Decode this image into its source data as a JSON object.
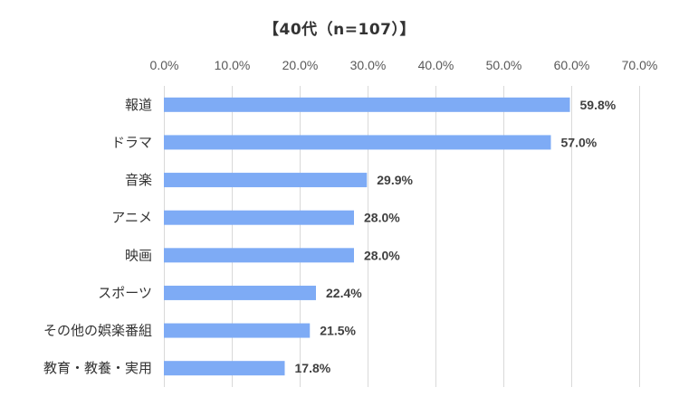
{
  "chart_data": {
    "type": "bar",
    "orientation": "horizontal",
    "title": "【40代（n=107）】",
    "categories": [
      "報道",
      "ドラマ",
      "音楽",
      "アニメ",
      "映画",
      "スポーツ",
      "その他の娯楽番組",
      "教育・教養・実用"
    ],
    "values": [
      59.8,
      57.0,
      29.9,
      28.0,
      28.0,
      22.4,
      21.5,
      17.8
    ],
    "value_labels": [
      "59.8%",
      "57.0%",
      "29.9%",
      "28.0%",
      "28.0%",
      "22.4%",
      "21.5%",
      "17.8%"
    ],
    "x_ticks": [
      "0.0%",
      "10.0%",
      "20.0%",
      "30.0%",
      "40.0%",
      "50.0%",
      "60.0%",
      "70.0%"
    ],
    "xlim": [
      0,
      70
    ],
    "x_axis_position": "top",
    "grid": true,
    "xlabel": "",
    "ylabel": "",
    "bar_color": "#7eabf5",
    "gridline_color": "#d9d9d9"
  }
}
